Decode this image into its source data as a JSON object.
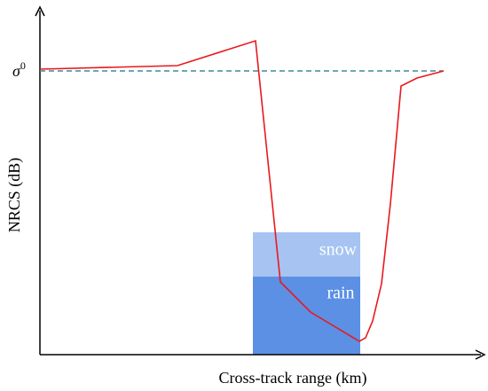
{
  "axes": {
    "y_label": "NRCS (dB)",
    "x_label": "Cross-track range (km)",
    "reference": {
      "symbol": "σ",
      "superscript": "0"
    }
  },
  "regions": {
    "snow": "snow",
    "rain": "rain"
  }
}
